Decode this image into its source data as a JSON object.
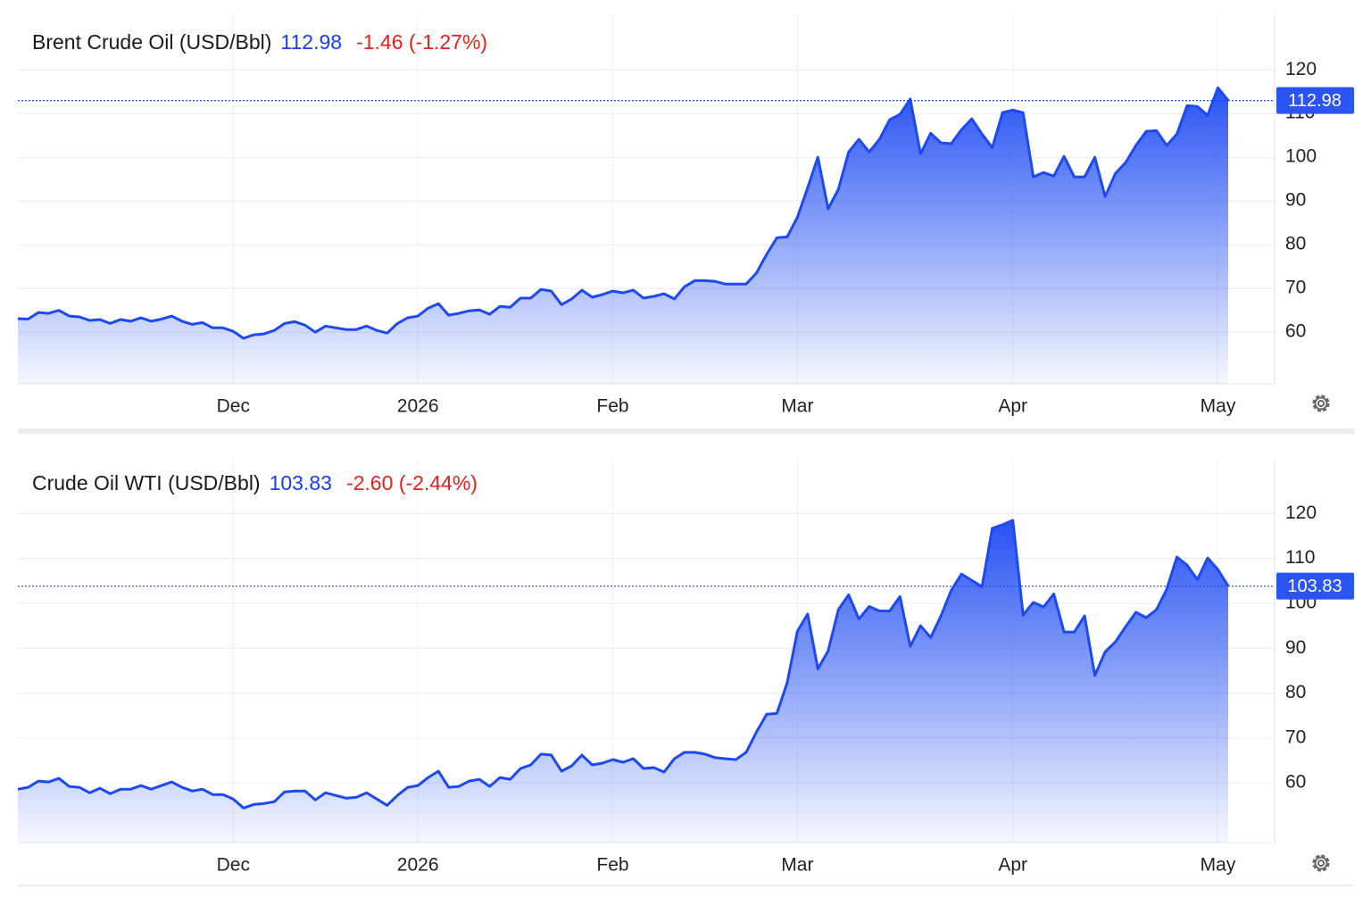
{
  "chart_data": [
    {
      "type": "area",
      "title": "Brent Crude Oil (USD/Bbl)",
      "change": "-1.46 (-1.27%)",
      "color": "#1c49f2",
      "ylim": [
        48.2,
        132.9
      ],
      "yticks": [
        60,
        70,
        80,
        90,
        100,
        110,
        120
      ],
      "grid": true,
      "categories": [
        null,
        null,
        null,
        null,
        null,
        null,
        null,
        null,
        null,
        null,
        null,
        null,
        null,
        null,
        null,
        null,
        null,
        null,
        null,
        null,
        null,
        "Dec",
        null,
        null,
        null,
        null,
        null,
        null,
        null,
        null,
        null,
        null,
        null,
        null,
        null,
        null,
        null,
        null,
        null,
        "2026",
        null,
        null,
        null,
        null,
        null,
        null,
        null,
        null,
        null,
        null,
        null,
        null,
        null,
        null,
        null,
        null,
        null,
        null,
        "Feb",
        null,
        null,
        null,
        null,
        null,
        null,
        null,
        null,
        null,
        null,
        null,
        null,
        null,
        null,
        null,
        null,
        null,
        "Mar",
        null,
        null,
        null,
        null,
        null,
        null,
        null,
        null,
        null,
        null,
        null,
        null,
        null,
        null,
        null,
        null,
        null,
        null,
        null,
        null,
        "Apr",
        null,
        null,
        null,
        null,
        null,
        null,
        null,
        null,
        null,
        null,
        null,
        null,
        null,
        null,
        null,
        null,
        null,
        null,
        null,
        "May",
        null
      ],
      "values": [
        63.1,
        63,
        64.5,
        64.3,
        65,
        63.7,
        63.5,
        62.7,
        62.9,
        62,
        62.9,
        62.5,
        63.3,
        62.5,
        63,
        63.7,
        62.5,
        61.8,
        62.2,
        61,
        61,
        60.2,
        58.6,
        59.4,
        59.6,
        60.4,
        62,
        62.4,
        61.6,
        60,
        61.4,
        61,
        60.6,
        60.6,
        61.4,
        60.4,
        59.8,
        62,
        63.3,
        63.7,
        65.5,
        66.5,
        63.9,
        64.3,
        64.9,
        65.1,
        64.1,
        65.9,
        65.7,
        67.8,
        67.8,
        69.8,
        69.4,
        66.3,
        67.6,
        69.6,
        68,
        68.6,
        69.4,
        69,
        69.6,
        67.8,
        68.2,
        68.8,
        67.6,
        70.4,
        71.8,
        71.8,
        71.6,
        71,
        71,
        71,
        73.5,
        77.8,
        81.6,
        81.8,
        86.3,
        93,
        100,
        88.2,
        92.7,
        101.2,
        104.1,
        101.2,
        104.1,
        108.6,
        109.8,
        113.3,
        100.8,
        105.5,
        103.3,
        103.1,
        106.3,
        108.8,
        105.3,
        102.2,
        110.2,
        110.8,
        110.2,
        95.5,
        96.5,
        95.7,
        100.2,
        95.5,
        95.5,
        100,
        91,
        96.3,
        98.8,
        102.7,
        105.9,
        106.1,
        102.7,
        105.3,
        111.8,
        111.6,
        109.6,
        115.9,
        112.98
      ]
    },
    {
      "type": "area",
      "title": "Crude Oil WTI (USD/Bbl)",
      "change": "-2.60 (-2.44%)",
      "color": "#1c49f2",
      "ylim": [
        46.7,
        132
      ],
      "yticks": [
        60,
        70,
        80,
        90,
        100,
        110,
        120
      ],
      "grid": true,
      "categories": [
        null,
        null,
        null,
        null,
        null,
        null,
        null,
        null,
        null,
        null,
        null,
        null,
        null,
        null,
        null,
        null,
        null,
        null,
        null,
        null,
        null,
        "Dec",
        null,
        null,
        null,
        null,
        null,
        null,
        null,
        null,
        null,
        null,
        null,
        null,
        null,
        null,
        null,
        null,
        null,
        "2026",
        null,
        null,
        null,
        null,
        null,
        null,
        null,
        null,
        null,
        null,
        null,
        null,
        null,
        null,
        null,
        null,
        null,
        null,
        "Feb",
        null,
        null,
        null,
        null,
        null,
        null,
        null,
        null,
        null,
        null,
        null,
        null,
        null,
        null,
        null,
        null,
        null,
        "Mar",
        null,
        null,
        null,
        null,
        null,
        null,
        null,
        null,
        null,
        null,
        null,
        null,
        null,
        null,
        null,
        null,
        null,
        null,
        null,
        null,
        "Apr",
        null,
        null,
        null,
        null,
        null,
        null,
        null,
        null,
        null,
        null,
        null,
        null,
        null,
        null,
        null,
        null,
        null,
        null,
        null,
        "May",
        null
      ],
      "values": [
        58.6,
        59,
        60.4,
        60.2,
        61,
        59.2,
        59,
        57.8,
        58.8,
        57.6,
        58.6,
        58.6,
        59.4,
        58.6,
        59.4,
        60.2,
        59,
        58.2,
        58.6,
        57.4,
        57.4,
        56.4,
        54.4,
        55.2,
        55.4,
        55.8,
        58,
        58.2,
        58.2,
        56.2,
        57.8,
        57.2,
        56.6,
        56.8,
        57.8,
        56.4,
        55,
        57.2,
        59,
        59.4,
        61.2,
        62.6,
        59,
        59.2,
        60.4,
        60.8,
        59.2,
        61.2,
        60.8,
        63.2,
        64,
        66.4,
        66.2,
        62.6,
        63.8,
        66.2,
        64,
        64.4,
        65.2,
        64.6,
        65.4,
        63.2,
        63.4,
        62.4,
        65.4,
        66.8,
        66.8,
        66.4,
        65.6,
        65.4,
        65.2,
        66.8,
        71.3,
        75.3,
        75.5,
        82.3,
        93.8,
        97.6,
        85.4,
        89.4,
        98.6,
        101.9,
        96.5,
        99.3,
        98.3,
        98.3,
        101.5,
        90.4,
        95,
        92.4,
        97.2,
        102.9,
        106.5,
        105.1,
        103.7,
        116.7,
        117.5,
        118.5,
        97.4,
        100.2,
        99.2,
        102.1,
        93.6,
        93.6,
        97.2,
        83.9,
        89.2,
        91.4,
        94.8,
        98,
        96.8,
        98.6,
        103.1,
        110.3,
        108.5,
        105.3,
        110.1,
        107.5,
        103.83
      ]
    }
  ]
}
